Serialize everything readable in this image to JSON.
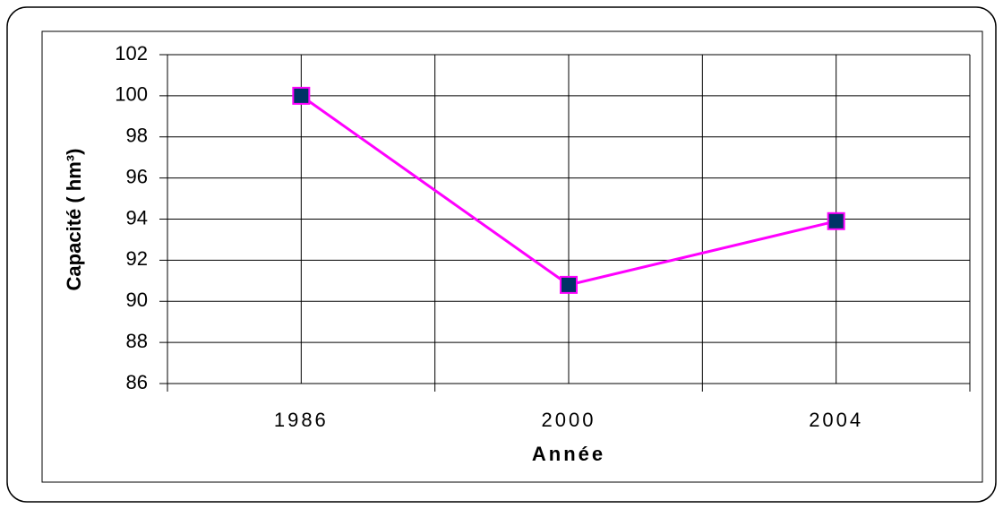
{
  "chart_data": {
    "type": "line",
    "xlabel": "Année",
    "ylabel": "Capacité ( hm³)",
    "categories": [
      "1986",
      "2000",
      "2004"
    ],
    "series": [
      {
        "color": "#ff00ff",
        "marker_color": "#003366",
        "values": [
          100,
          90.8,
          93.9
        ]
      }
    ],
    "ylim": [
      86,
      102
    ],
    "yticks": [
      86,
      88,
      90,
      92,
      94,
      96,
      98,
      100,
      102
    ],
    "grid": true
  }
}
